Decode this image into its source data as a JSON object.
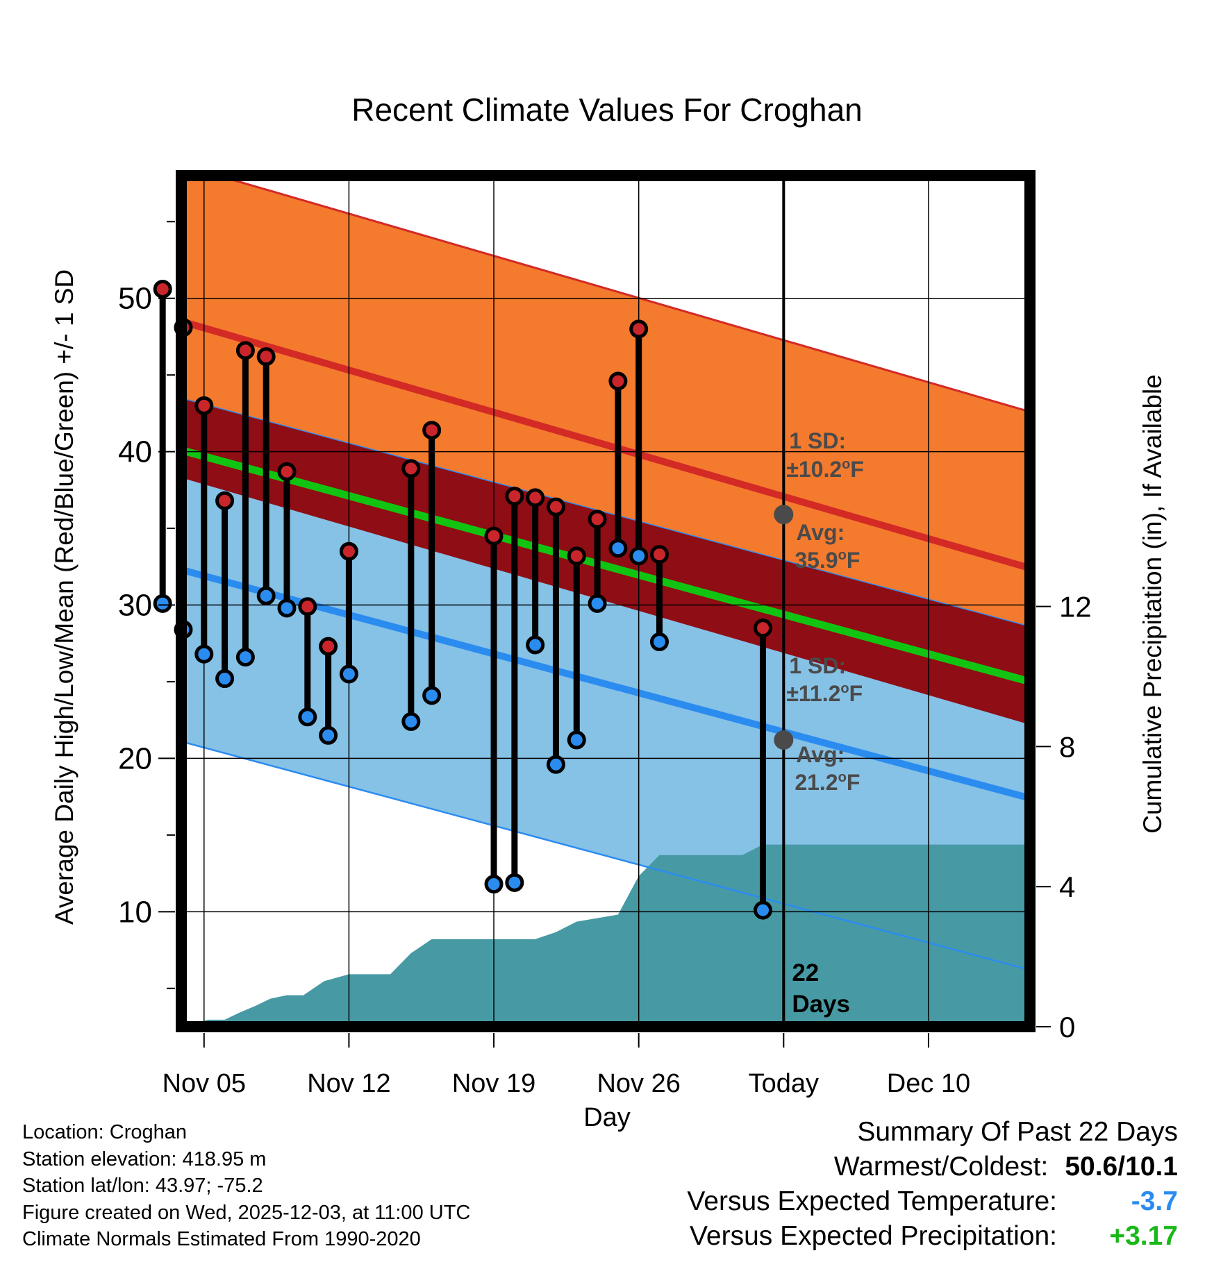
{
  "chart_data": {
    "type": "line",
    "title": "Recent Climate Values For Croghan",
    "xlabel": "Day",
    "ylabel": "Average Daily High/Low/Mean (Red/Blue/Green) +/- 1 SD",
    "ylabel_right": "Cumulative Precipitation (in), If Available",
    "x_range_days": [
      -29.1,
      11.9
    ],
    "ylim": [
      2.5,
      58.0
    ],
    "y2lim": [
      0,
      24.3
    ],
    "y_ticks": [
      10,
      20,
      30,
      40,
      50
    ],
    "y2_ticks": [
      0,
      4,
      8,
      12
    ],
    "x_ticks": [
      {
        "day": -28,
        "label": "Nov 05"
      },
      {
        "day": -21,
        "label": "Nov 12"
      },
      {
        "day": -14,
        "label": "Nov 19"
      },
      {
        "day": -7,
        "label": "Nov 26"
      },
      {
        "day": 0,
        "label": "Today"
      },
      {
        "day": 7,
        "label": "Dec 10"
      }
    ],
    "today_day": 0,
    "days_label_number": "22",
    "days_label_word": "Days",
    "normals": {
      "x": [
        -29.1,
        11.9
      ],
      "high_avg": [
        48.5,
        32.4
      ],
      "high_sd": 10.2,
      "mean_avg": [
        40.1,
        25.0
      ],
      "low_avg": [
        32.3,
        17.4
      ],
      "low_sd": 11.2
    },
    "high_annotation": {
      "sd_title": "1 SD:",
      "sd_value": "±10.2",
      "avg_title": "Avg:",
      "avg_value": "35.9",
      "value": 35.9,
      "unit_sup": "o",
      "unit": "F"
    },
    "low_annotation": {
      "sd_title": "1 SD:",
      "sd_value": "±11.2",
      "avg_title": "Avg:",
      "avg_value": "21.2",
      "value": 21.2,
      "unit_sup": "o",
      "unit": "F"
    },
    "observations": {
      "days": [
        -30,
        -29,
        -28,
        -27,
        -26,
        -25,
        -24,
        -23,
        -22,
        -21,
        -18,
        -17,
        -14,
        -13,
        -12,
        -11,
        -10,
        -9,
        -8,
        -7,
        -6,
        -1
      ],
      "highs": [
        50.6,
        48.1,
        43.0,
        36.8,
        46.6,
        46.2,
        38.7,
        29.9,
        27.3,
        33.5,
        38.9,
        41.4,
        34.5,
        37.1,
        37.0,
        36.4,
        33.2,
        35.6,
        44.6,
        48.0,
        33.3,
        28.5
      ],
      "lows": [
        30.1,
        28.4,
        26.8,
        25.2,
        26.6,
        30.6,
        29.8,
        22.7,
        21.5,
        25.5,
        22.4,
        24.1,
        11.8,
        11.9,
        27.4,
        19.6,
        21.2,
        30.1,
        33.7,
        33.2,
        27.6,
        10.1
      ]
    },
    "precipitation": {
      "days": [
        -29.1,
        -28.5,
        -27.8,
        -27.0,
        -26.3,
        -25.5,
        -24.8,
        -24.0,
        -23.2,
        -22.2,
        -21.0,
        -19.0,
        -18.0,
        -17.0,
        -14.0,
        -12.0,
        -11.0,
        -10.0,
        -8.0,
        -7.0,
        -6.0,
        -4.0,
        -2.0,
        -1.0,
        0.0,
        11.9
      ],
      "cumulative": [
        0.0,
        0.1,
        0.2,
        0.2,
        0.4,
        0.6,
        0.8,
        0.9,
        0.9,
        1.3,
        1.5,
        1.5,
        2.1,
        2.5,
        2.5,
        2.5,
        2.7,
        3.0,
        3.2,
        4.3,
        4.9,
        4.9,
        4.9,
        5.2,
        5.2,
        5.2
      ]
    },
    "legend": "none",
    "grid": true
  },
  "colors": {
    "high_band": "#f47a2e",
    "high_avg_line": "#d32a26",
    "low_band": "#86c1e6",
    "low_avg_line": "#2b8cf0",
    "low_band_edge": "#2b8cf0",
    "overlap_band": "#8f0d14",
    "mean_line": "#12c412",
    "precip_fill": "#479aa4",
    "high_marker": "#c9252b",
    "low_marker": "#2b8cf0",
    "avg_dot": "#4a4a4a",
    "annotation_text": "#4a4a4a",
    "summary_temp": "#2b8cf0",
    "summary_precip": "#18b818"
  },
  "footer": {
    "location": "Location: Croghan",
    "elevation": "Station elevation: 418.95 m",
    "latlon": "Station lat/lon: 43.97; -75.2",
    "created": "Figure created on Wed, 2025-12-03, at 11:00 UTC",
    "normals": "Climate Normals Estimated From 1990-2020"
  },
  "summary": {
    "title": "Summary Of Past 22 Days",
    "warmest_label": "Warmest/Coldest:",
    "warmest_value": "50.6/10.1",
    "temp_label": "Versus Expected Temperature:",
    "temp_value": "-3.7",
    "precip_label": "Versus Expected Precipitation:",
    "precip_value": "+3.17"
  }
}
